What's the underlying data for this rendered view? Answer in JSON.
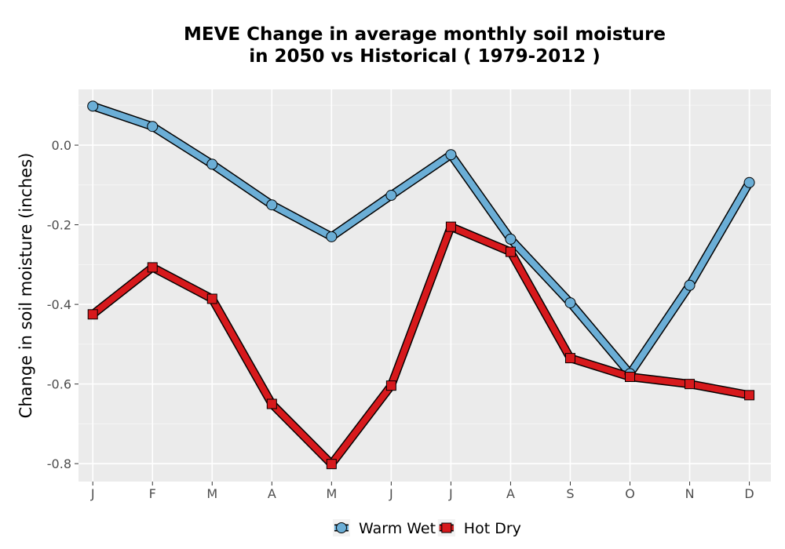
{
  "chart_data": {
    "type": "line",
    "title": "MEVE  Change in average monthly soil moisture\nin 2050 vs Historical ( 1979-2012 )",
    "xlabel": "",
    "ylabel": "Change in soil moisture (inches)",
    "categories": [
      "J",
      "F",
      "M",
      "A",
      "M",
      "J",
      "J",
      "A",
      "S",
      "O",
      "N",
      "D"
    ],
    "ylim": [
      -0.845,
      0.14
    ],
    "yticks": [
      0.0,
      -0.2,
      -0.4,
      -0.6,
      -0.8
    ],
    "ytick_labels": [
      "0.0",
      "-0.2",
      "-0.4",
      "-0.6",
      "-0.8"
    ],
    "grid": true,
    "legend_position": "bottom",
    "series": [
      {
        "name": "Warm Wet",
        "color": "#6baed6",
        "marker": "circle",
        "values": [
          0.098,
          0.047,
          -0.048,
          -0.15,
          -0.23,
          -0.126,
          -0.024,
          -0.236,
          -0.396,
          -0.574,
          -0.352,
          -0.094
        ]
      },
      {
        "name": "Hot Dry",
        "color": "#d7191c",
        "marker": "square",
        "values": [
          -0.425,
          -0.307,
          -0.386,
          -0.65,
          -0.801,
          -0.604,
          -0.205,
          -0.268,
          -0.535,
          -0.582,
          -0.6,
          -0.628
        ]
      }
    ]
  }
}
